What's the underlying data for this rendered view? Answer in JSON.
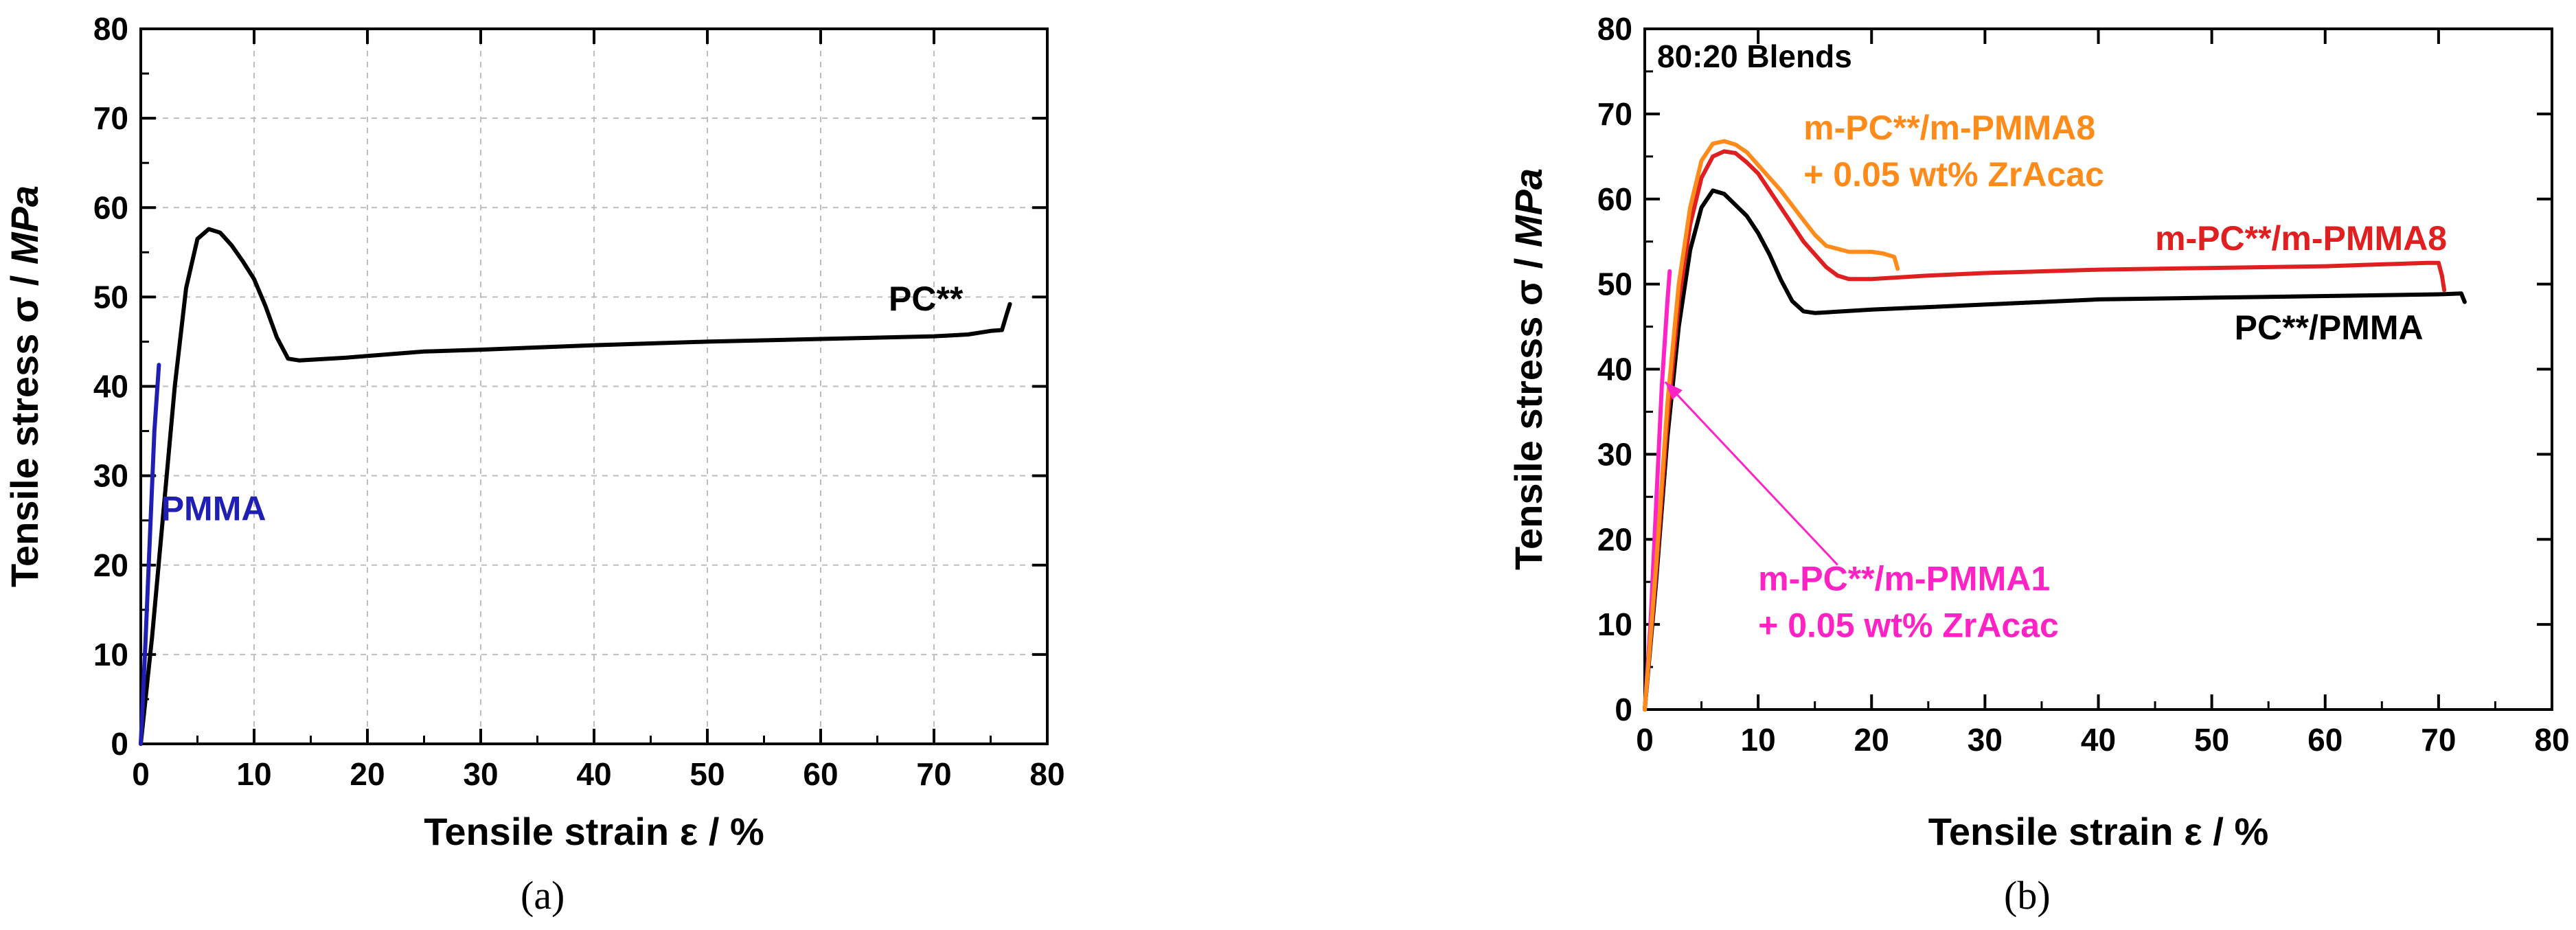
{
  "chart_data": [
    {
      "type": "line",
      "panel_label": "(a)",
      "xlabel": "Tensile strain ε / %",
      "ylabel_main": "Tensile stress σ / ",
      "ylabel_unit": "MPa",
      "xlim": [
        0,
        80
      ],
      "ylim": [
        0,
        80
      ],
      "xticks": [
        0,
        10,
        20,
        30,
        40,
        50,
        60,
        70,
        80
      ],
      "yticks": [
        0,
        10,
        20,
        30,
        40,
        50,
        60,
        70,
        80
      ],
      "grid": true,
      "series": [
        {
          "name": "PC**",
          "color": "#000000",
          "points": [
            [
              0,
              0
            ],
            [
              1,
              12
            ],
            [
              2,
              26
            ],
            [
              3,
              40
            ],
            [
              4,
              51
            ],
            [
              5,
              56.5
            ],
            [
              6,
              57.6
            ],
            [
              7,
              57.2
            ],
            [
              8,
              55.8
            ],
            [
              9,
              54
            ],
            [
              10,
              52
            ],
            [
              11,
              49
            ],
            [
              12,
              45.5
            ],
            [
              13,
              43.1
            ],
            [
              14,
              42.9
            ],
            [
              18,
              43.2
            ],
            [
              25,
              43.9
            ],
            [
              30,
              44.1
            ],
            [
              40,
              44.6
            ],
            [
              50,
              45
            ],
            [
              60,
              45.3
            ],
            [
              70,
              45.6
            ],
            [
              73,
              45.8
            ],
            [
              75,
              46.2
            ],
            [
              76,
              46.3
            ],
            [
              76.4,
              48
            ],
            [
              76.7,
              49.2
            ]
          ]
        },
        {
          "name": "PMMA",
          "color": "#1f1fb4",
          "points": [
            [
              0,
              0
            ],
            [
              0.4,
              11
            ],
            [
              0.8,
              23
            ],
            [
              1.2,
              35
            ],
            [
              1.6,
              42.4
            ]
          ]
        }
      ],
      "annotations": [
        {
          "text": "PC**",
          "x": 66,
          "y": 48.5,
          "color": "#000000"
        },
        {
          "text": "PMMA",
          "x": 1.8,
          "y": 25,
          "color": "#1f1fb4"
        }
      ]
    },
    {
      "type": "line",
      "panel_label": "(b)",
      "title": "80:20 Blends",
      "xlabel": "Tensile strain ε / %",
      "ylabel_main": "Tensile stress σ / ",
      "ylabel_unit": "MPa",
      "xlim": [
        0,
        80
      ],
      "ylim": [
        0,
        80
      ],
      "xticks": [
        0,
        10,
        20,
        30,
        40,
        50,
        60,
        70,
        80
      ],
      "yticks": [
        0,
        10,
        20,
        30,
        40,
        50,
        60,
        70,
        80
      ],
      "grid": false,
      "series": [
        {
          "name": "m-PC**/m-PMMA1 + 0.05 wt% ZrAcac",
          "color": "#ff22c4",
          "points": [
            [
              0,
              0
            ],
            [
              0.5,
              10
            ],
            [
              1,
              24
            ],
            [
              1.5,
              38
            ],
            [
              2,
              48
            ],
            [
              2.2,
              51.5
            ]
          ]
        },
        {
          "name": "PC**/PMMA",
          "color": "#000000",
          "points": [
            [
              0,
              0
            ],
            [
              1,
              15
            ],
            [
              2,
              32
            ],
            [
              3,
              45
            ],
            [
              4,
              54
            ],
            [
              5,
              59
            ],
            [
              6,
              61
            ],
            [
              7,
              60.6
            ],
            [
              8,
              59.3
            ],
            [
              9,
              58
            ],
            [
              10,
              56
            ],
            [
              11,
              53.5
            ],
            [
              12,
              50.5
            ],
            [
              13,
              48
            ],
            [
              14,
              46.8
            ],
            [
              15,
              46.6
            ],
            [
              20,
              47
            ],
            [
              30,
              47.6
            ],
            [
              40,
              48.2
            ],
            [
              50,
              48.4
            ],
            [
              60,
              48.6
            ],
            [
              70,
              48.8
            ],
            [
              72,
              48.9
            ],
            [
              72.3,
              47.9
            ]
          ]
        },
        {
          "name": "m-PC**/m-PMMA8",
          "color": "#e02020",
          "points": [
            [
              0,
              0
            ],
            [
              1,
              16
            ],
            [
              2,
              34
            ],
            [
              3,
              48
            ],
            [
              4,
              57
            ],
            [
              5,
              62.5
            ],
            [
              6,
              65
            ],
            [
              7,
              65.6
            ],
            [
              8,
              65.4
            ],
            [
              9,
              64.3
            ],
            [
              10,
              63
            ],
            [
              12,
              59
            ],
            [
              14,
              55
            ],
            [
              16,
              52
            ],
            [
              17,
              51
            ],
            [
              18,
              50.6
            ],
            [
              20,
              50.6
            ],
            [
              25,
              51
            ],
            [
              30,
              51.3
            ],
            [
              40,
              51.7
            ],
            [
              50,
              51.9
            ],
            [
              60,
              52.1
            ],
            [
              69,
              52.5
            ],
            [
              70,
              52.5
            ],
            [
              70.3,
              51
            ],
            [
              70.5,
              49.3
            ]
          ]
        },
        {
          "name": "m-PC**/m-PMMA8 + 0.05 wt% ZrAcac",
          "color": "#ff8c1a",
          "points": [
            [
              0,
              0
            ],
            [
              1,
              17
            ],
            [
              2,
              36
            ],
            [
              3,
              50
            ],
            [
              4,
              59
            ],
            [
              5,
              64.5
            ],
            [
              6,
              66.5
            ],
            [
              7,
              66.8
            ],
            [
              8,
              66.4
            ],
            [
              9,
              65.5
            ],
            [
              10,
              64
            ],
            [
              12,
              61
            ],
            [
              14,
              57.5
            ],
            [
              15,
              55.8
            ],
            [
              16,
              54.5
            ],
            [
              18,
              53.8
            ],
            [
              20,
              53.8
            ],
            [
              21,
              53.6
            ],
            [
              22,
              53.2
            ],
            [
              22.3,
              51.8
            ]
          ]
        }
      ],
      "annotations": [
        {
          "text": "m-PC**/m-PMMA8",
          "x": 14,
          "y": 67,
          "color": "#ff8c1a"
        },
        {
          "text": "+ 0.05 wt% ZrAcac",
          "x": 14,
          "y": 61.5,
          "color": "#ff8c1a"
        },
        {
          "text": "m-PC**/m-PMMA8",
          "x": 45,
          "y": 54,
          "color": "#e02020"
        },
        {
          "text": "PC**/PMMA",
          "x": 52,
          "y": 43.5,
          "color": "#000000"
        },
        {
          "text": "m-PC**/m-PMMA1",
          "x": 10,
          "y": 14,
          "color": "#ff22c4"
        },
        {
          "text": "+ 0.05 wt% ZrAcac",
          "x": 10,
          "y": 8.5,
          "color": "#ff22c4"
        }
      ],
      "arrow": {
        "color": "#ff22c4",
        "from": [
          17,
          17
        ],
        "to": [
          1.8,
          38.5
        ]
      }
    }
  ]
}
